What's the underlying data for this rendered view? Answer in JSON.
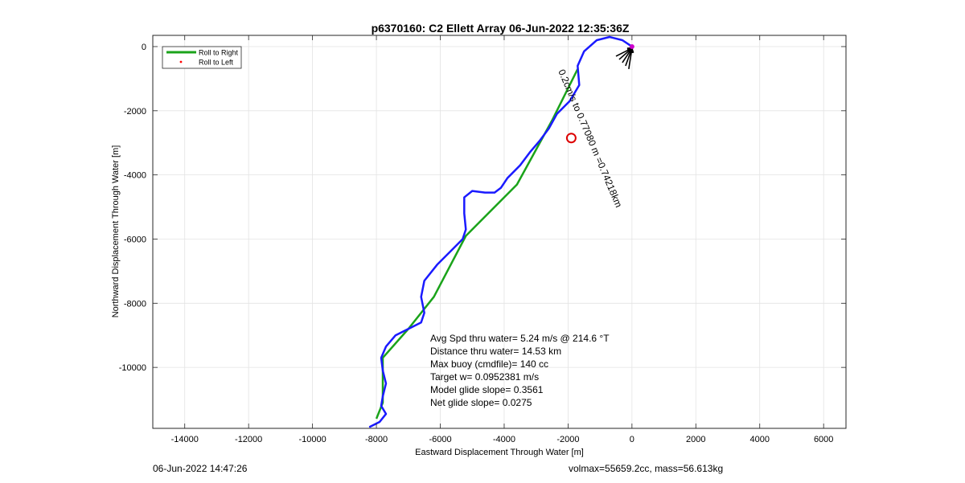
{
  "chart_data": {
    "type": "line",
    "title": "p6370160: C2 Ellett Array 06-Jun-2022 12:35:36Z",
    "xlabel": "Eastward Displacement Through Water [m]",
    "ylabel": "Northward Displacement Through Water [m]",
    "xlim": [
      -15000,
      6700
    ],
    "ylim": [
      -11900,
      350
    ],
    "xticks": [
      -14000,
      -12000,
      -10000,
      -8000,
      -6000,
      -4000,
      -2000,
      0,
      2000,
      4000,
      6000
    ],
    "yticks": [
      0,
      -2000,
      -4000,
      -6000,
      -8000,
      -10000
    ],
    "grid": true,
    "legend_position": "top-left",
    "series": [
      {
        "name": "Roll to Right",
        "color": "#1aa31a",
        "style": "solid",
        "points": [
          [
            -1700,
            -700
          ],
          [
            -2500,
            -2300
          ],
          [
            -3600,
            -4300
          ],
          [
            -5200,
            -5900
          ],
          [
            -6200,
            -7800
          ],
          [
            -7000,
            -8800
          ],
          [
            -7800,
            -9700
          ],
          [
            -7800,
            -11100
          ],
          [
            -8000,
            -11600
          ]
        ]
      },
      {
        "name": "Roll to Left",
        "color": "#ff0000",
        "style": "dot",
        "points": [
          [
            -50,
            -50
          ]
        ]
      },
      {
        "color": "#1a1aff",
        "style": "solid",
        "points": [
          [
            0,
            0
          ],
          [
            -300,
            200
          ],
          [
            -700,
            300
          ],
          [
            -1100,
            200
          ],
          [
            -1500,
            -150
          ],
          [
            -1700,
            -600
          ],
          [
            -1650,
            -1200
          ],
          [
            -1950,
            -1700
          ],
          [
            -2350,
            -2100
          ],
          [
            -2600,
            -2550
          ],
          [
            -2900,
            -2950
          ],
          [
            -3200,
            -3300
          ],
          [
            -3500,
            -3700
          ],
          [
            -3900,
            -4100
          ],
          [
            -4100,
            -4400
          ],
          [
            -4300,
            -4550
          ],
          [
            -4600,
            -4550
          ],
          [
            -5000,
            -4500
          ],
          [
            -5250,
            -4700
          ],
          [
            -5250,
            -5200
          ],
          [
            -5200,
            -5700
          ],
          [
            -5300,
            -6000
          ],
          [
            -5700,
            -6400
          ],
          [
            -6100,
            -6800
          ],
          [
            -6500,
            -7300
          ],
          [
            -6600,
            -7800
          ],
          [
            -6500,
            -8300
          ],
          [
            -6600,
            -8600
          ],
          [
            -7000,
            -8800
          ],
          [
            -7400,
            -9000
          ],
          [
            -7700,
            -9350
          ],
          [
            -7850,
            -9700
          ],
          [
            -7800,
            -10100
          ],
          [
            -7700,
            -10500
          ],
          [
            -7800,
            -10900
          ],
          [
            -7850,
            -11200
          ],
          [
            -7700,
            -11450
          ],
          [
            -7900,
            -11700
          ],
          [
            -8200,
            -11850
          ]
        ]
      }
    ],
    "arrows": [
      {
        "from": [
          -100,
          -700
        ],
        "to": [
          0,
          -50
        ]
      },
      {
        "from": [
          -200,
          -600
        ],
        "to": [
          0,
          -50
        ]
      },
      {
        "from": [
          -300,
          -500
        ],
        "to": [
          0,
          -50
        ]
      },
      {
        "from": [
          -400,
          -400
        ],
        "to": [
          0,
          -50
        ]
      },
      {
        "from": [
          -500,
          -300
        ],
        "to": [
          0,
          -50
        ]
      }
    ],
    "current_marker": {
      "x": -1900,
      "y": -2850,
      "color": "#dd0000"
    },
    "waypoint_marker": {
      "x": 0,
      "y": 0,
      "color": "#cc00cc"
    },
    "stats": [
      "Avg Spd thru water=  5.24 m/s @ 214.6 °T",
      "Distance thru water= 14.53 km",
      "Max buoy (cmdfile)= 140 cc",
      "Target w= 0.0952381 m/s",
      "Model glide slope= 0.3561",
      "Net glide slope= 0.0275"
    ],
    "rotated_annotation": {
      "text": "0.2cm/s to 0.77080 m =0.74218km",
      "x": -1400,
      "y": -2900,
      "angle": 67
    }
  },
  "footer": {
    "timestamp": "06-Jun-2022 14:47:26",
    "volmax_mass": "volmax=55659.2cc, mass=56.613kg"
  }
}
